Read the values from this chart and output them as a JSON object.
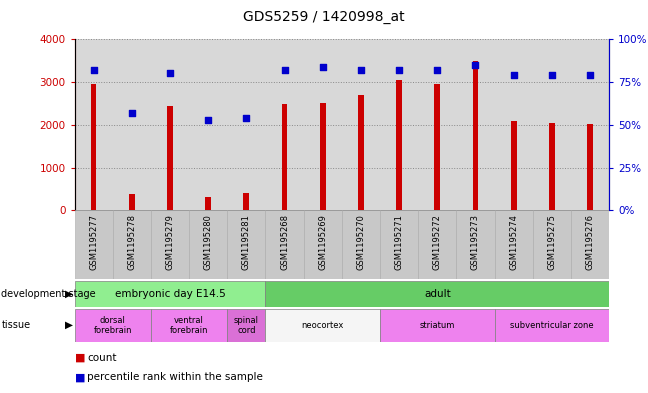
{
  "title": "GDS5259 / 1420998_at",
  "samples": [
    "GSM1195277",
    "GSM1195278",
    "GSM1195279",
    "GSM1195280",
    "GSM1195281",
    "GSM1195268",
    "GSM1195269",
    "GSM1195270",
    "GSM1195271",
    "GSM1195272",
    "GSM1195273",
    "GSM1195274",
    "GSM1195275",
    "GSM1195276"
  ],
  "counts": [
    2950,
    380,
    2450,
    300,
    400,
    2480,
    2500,
    2700,
    3050,
    2950,
    3500,
    2100,
    2050,
    2020
  ],
  "percentiles": [
    82,
    57,
    80,
    53,
    54,
    82,
    84,
    82,
    82,
    82,
    85,
    79,
    79,
    79
  ],
  "bar_color": "#cc0000",
  "dot_color": "#0000cc",
  "ylim_left": [
    0,
    4000
  ],
  "ylim_right": [
    0,
    100
  ],
  "yticks_left": [
    0,
    1000,
    2000,
    3000,
    4000
  ],
  "ytick_labels_left": [
    "0",
    "1000",
    "2000",
    "3000",
    "4000"
  ],
  "yticks_right": [
    0,
    25,
    50,
    75,
    100
  ],
  "ytick_labels_right": [
    "0%",
    "25%",
    "50%",
    "75%",
    "100%"
  ],
  "dev_stage_embryonic": {
    "label": "embryonic day E14.5",
    "start": 0,
    "end": 5,
    "color": "#90ee90"
  },
  "dev_stage_adult": {
    "label": "adult",
    "start": 5,
    "end": 14,
    "color": "#66cc66"
  },
  "tissues": [
    {
      "label": "dorsal\nforebrain",
      "start": 0,
      "end": 2,
      "color": "#ee82ee"
    },
    {
      "label": "ventral\nforebrain",
      "start": 2,
      "end": 4,
      "color": "#ee82ee"
    },
    {
      "label": "spinal\ncord",
      "start": 4,
      "end": 5,
      "color": "#da70d6"
    },
    {
      "label": "neocortex",
      "start": 5,
      "end": 8,
      "color": "#f5f5f5"
    },
    {
      "label": "striatum",
      "start": 8,
      "end": 11,
      "color": "#ee82ee"
    },
    {
      "label": "subventricular zone",
      "start": 11,
      "end": 14,
      "color": "#ee82ee"
    }
  ],
  "background_color": "#ffffff",
  "grid_color": "#888888",
  "axis_bg": "#d8d8d8",
  "label_bg": "#c8c8c8"
}
